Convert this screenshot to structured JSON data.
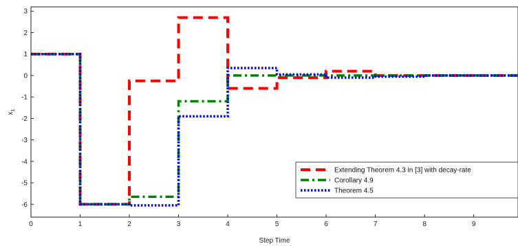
{
  "chart_data": {
    "type": "line",
    "xlabel": "Step Time",
    "ylabel": "x",
    "ylabel_sub": "1",
    "xlim": [
      0,
      9.9
    ],
    "ylim": [
      -6.6,
      3.2
    ],
    "xticks": [
      "0",
      "1",
      "2",
      "3",
      "4",
      "5",
      "6",
      "7",
      "8",
      "9"
    ],
    "yticks": [
      "3",
      "2",
      "1",
      "0",
      "-1",
      "-2",
      "-3",
      "-4",
      "-5",
      "-6"
    ],
    "grid": false,
    "legend_position": "bottom-right",
    "series": [
      {
        "name": "Extending Theorem 4.3 in [3] with decay-rate",
        "color": "#ff0000",
        "style": "dashed",
        "x": [
          0,
          1,
          2,
          3,
          4,
          5,
          6,
          7,
          8,
          9,
          9.9
        ],
        "y": [
          1,
          -6,
          -0.25,
          2.7,
          -0.6,
          -0.1,
          0.2,
          0.0,
          0.0,
          0.0,
          0.0
        ]
      },
      {
        "name": "Corollary 4.9",
        "color": "#008000",
        "style": "dashdot",
        "x": [
          0,
          1,
          2,
          3,
          4,
          5,
          6,
          7,
          8,
          9,
          9.9
        ],
        "y": [
          1,
          -6,
          -5.65,
          -1.2,
          0.0,
          0.0,
          0.0,
          0.0,
          0.0,
          0.0,
          0.0
        ]
      },
      {
        "name": "Theorem 4.5",
        "color": "#0000ff",
        "style": "dotted",
        "x": [
          0,
          1,
          2,
          3,
          4,
          5,
          6,
          7,
          8,
          9,
          9.9
        ],
        "y": [
          1,
          -6,
          -6.05,
          -1.9,
          0.35,
          0.05,
          -0.1,
          -0.05,
          0.0,
          0.0,
          0.0
        ]
      }
    ]
  }
}
